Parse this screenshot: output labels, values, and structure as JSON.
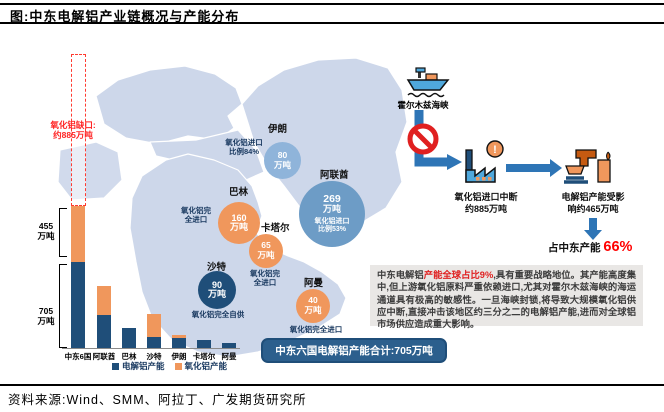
{
  "header": {
    "title": "图:中东电解铝产业链概况与产能分布"
  },
  "footer": {
    "source": "资料来源:Wind、SMM、阿拉丁、广发期货研究所"
  },
  "colors": {
    "electrolytic_blue": "#1F4E79",
    "alumina_orange": "#F0975C",
    "map_land": "#CDD7EA",
    "accent_red": "#FF0000",
    "arrow_blue": "#2E75B6",
    "summary_navy": "#2C5F8D",
    "note_bg": "#E9E7E5"
  },
  "chart_data": {
    "type": "bar",
    "stacked": true,
    "unit": "万吨",
    "categories": [
      "中东6国",
      "阿联酋",
      "巴林",
      "沙特",
      "伊朗",
      "卡塔尔",
      "阿曼"
    ],
    "series": [
      {
        "name": "电解铝产能",
        "color": "#1F4E79",
        "values": [
          705,
          269,
          160,
          90,
          80,
          65,
          40
        ]
      },
      {
        "name": "氧化铝产能",
        "color": "#F0975C",
        "values": [
          455,
          240,
          0,
          190,
          25,
          0,
          0
        ]
      }
    ],
    "annotations": {
      "gap_line1": "氧化铝缺口:",
      "gap_line2": "约885万吨",
      "bracket_alumina_line1": "455",
      "bracket_alumina_line2": "万吨",
      "bracket_electro_line1": "705",
      "bracket_electro_line2": "万吨"
    },
    "legend_position": "bottom",
    "grid": false
  },
  "map": {
    "bubbles": [
      {
        "country": "伊朗",
        "value": "80",
        "unit": "万吨"
      },
      {
        "country": "阿联酋",
        "value": "269",
        "unit": "万吨",
        "inote1": "氧化铝进口",
        "inote2": "比例53%"
      },
      {
        "country": "巴林",
        "value": "160",
        "unit": "万吨"
      },
      {
        "country": "卡塔尔",
        "value": "65",
        "unit": "万吨"
      },
      {
        "country": "沙特",
        "value": "90",
        "unit": "万吨"
      },
      {
        "country": "阿曼",
        "value": "40",
        "unit": "万吨"
      }
    ],
    "notes": {
      "iran1": "氧化铝进口",
      "iran2": "比例84%",
      "bahrain1": "氧化铝完",
      "bahrain2": "全进口",
      "qatar1": "氧化铝完",
      "qatar2": "全进口",
      "saudi": "氧化铝完全自供",
      "oman": "氧化铝完全进口"
    },
    "summary": "中东六国电解铝产能合计:705万吨"
  },
  "flow": {
    "strait_label": "霍尔木兹海峡",
    "step1_line1": "氧化铝进口中断",
    "step1_line2": "约885万吨",
    "step2_line1": "电解铝产能受影",
    "step2_line2": "响约465万吨",
    "share_prefix": "占中东产能 ",
    "share_value": "66%"
  },
  "note_box": {
    "prefix": "中东电解铝",
    "highlight": "产能全球占比9%",
    "body": ",具有重要战略地位。其产能高度集中,但上游氧化铝原料严重依赖进口,尤其对霍尔木兹海峡的海运通道具有极高的敏感性。一旦海峡封锁,将导致大规模氧化铝供应中断,直接冲击该地区约三分之二的电解铝产能,进而对全球铝市场供应造成重大影响。"
  }
}
